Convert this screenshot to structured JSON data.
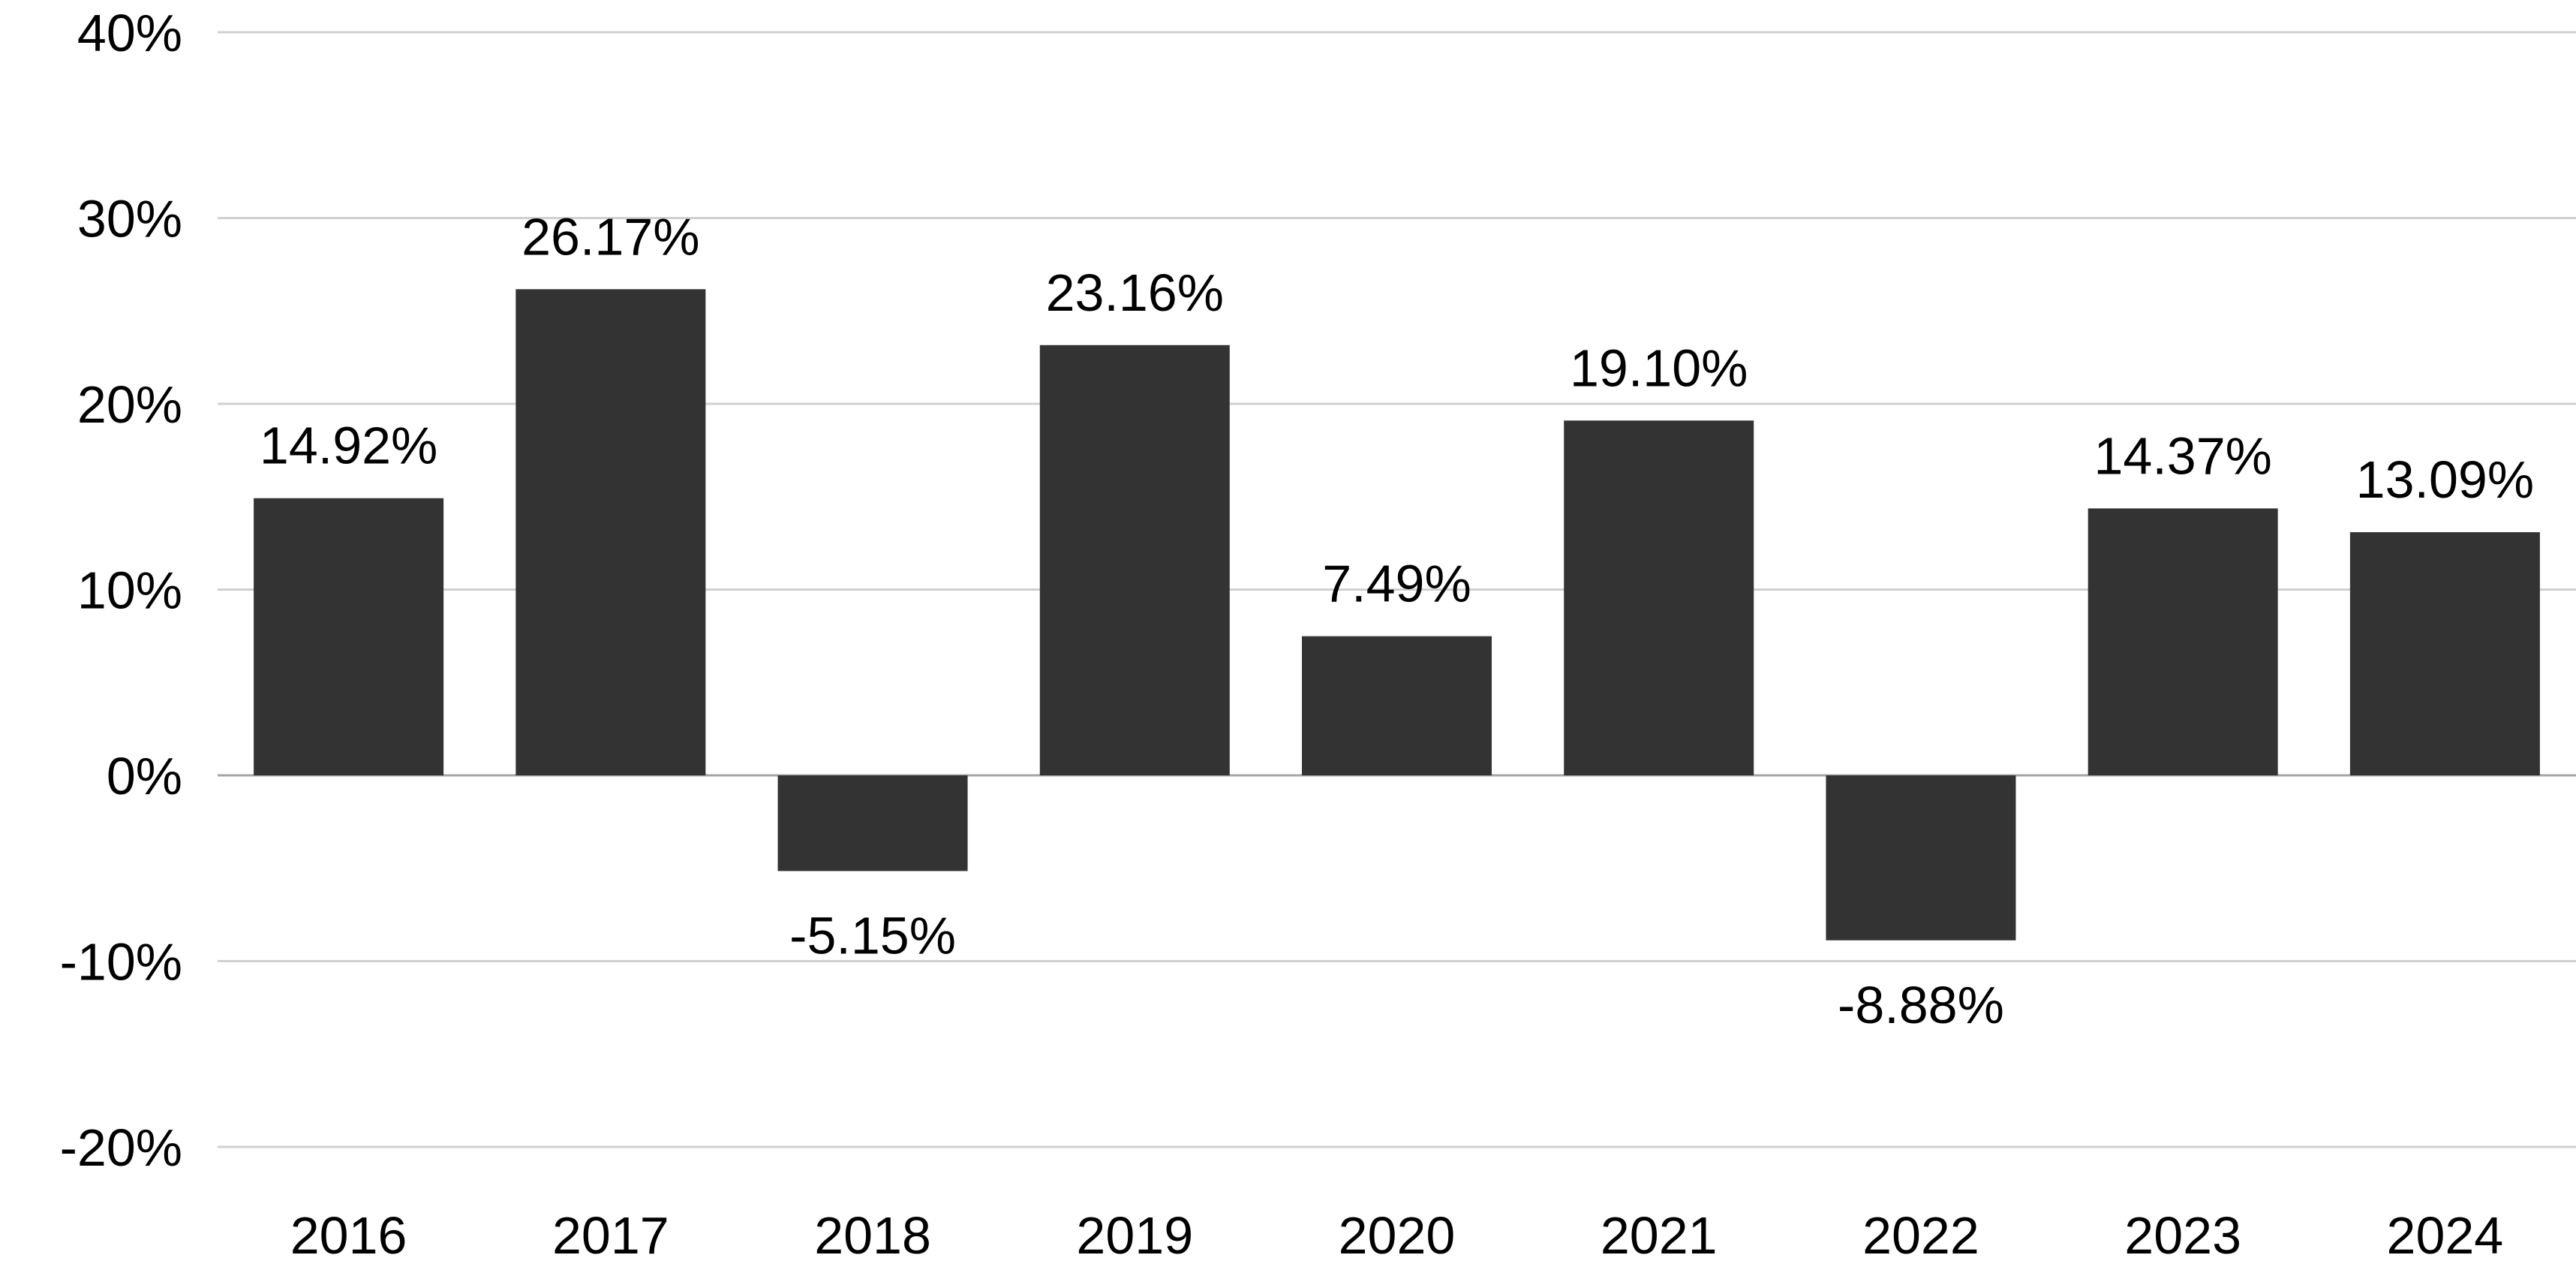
{
  "chart_data": {
    "type": "bar",
    "categories": [
      "2016",
      "2017",
      "2018",
      "2019",
      "2020",
      "2021",
      "2022",
      "2023",
      "2024"
    ],
    "values": [
      14.92,
      26.17,
      -5.15,
      23.16,
      7.49,
      19.1,
      -8.88,
      14.37,
      13.09
    ],
    "data_labels": [
      "14.92%",
      "26.17%",
      "-5.15%",
      "23.16%",
      "7.49%",
      "19.10%",
      "-8.88%",
      "14.37%",
      "13.09%"
    ],
    "ylim": [
      -20,
      40
    ],
    "yticks": [
      40,
      30,
      20,
      10,
      0,
      -10,
      -20
    ],
    "ytick_labels": [
      "40%",
      "30%",
      "20%",
      "10%",
      "0%",
      "-10%",
      "-20%"
    ],
    "grid": true,
    "legend": "none",
    "bar_color": "#333333",
    "title": "",
    "xlabel": "",
    "ylabel": ""
  }
}
